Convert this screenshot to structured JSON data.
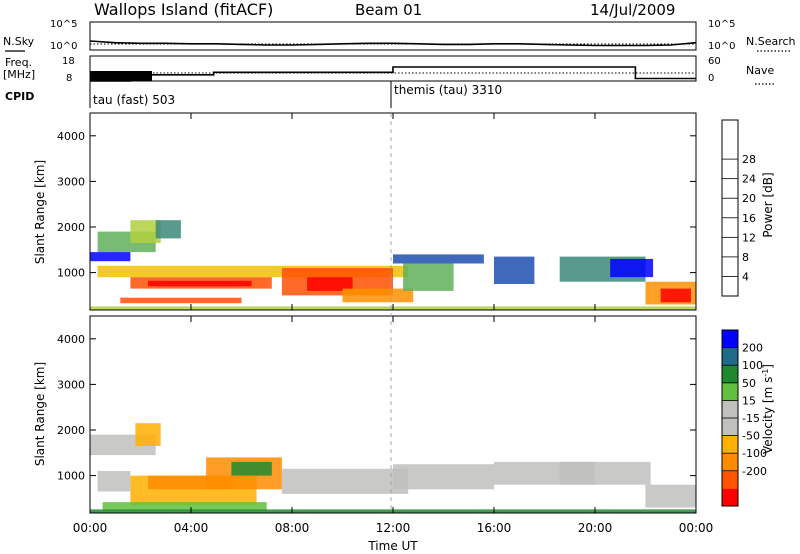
{
  "header": {
    "site": "Wallops Island (fitACF)",
    "beam": "Beam 01",
    "date": "14/Jul/2009"
  },
  "left_labels": {
    "nsky": "N.Sky",
    "freq_top": "Freq.",
    "freq_unit": "[MHz]",
    "cpid": "CPID"
  },
  "right_labels": {
    "nsearch": "N.Search",
    "nave": "Nave"
  },
  "cpid": {
    "segments": [
      {
        "label": "tau (fast) 503",
        "start_hour": 0
      },
      {
        "label": "themis (tau) 3310",
        "start_hour": 12
      }
    ]
  },
  "colors": {
    "power": [
      "#0000ff",
      "#1f4fb0",
      "#3b8a7a",
      "#60b05a",
      "#b0d040",
      "#f0c000",
      "#ff9000",
      "#ff5000",
      "#ff0000"
    ],
    "velocity": [
      "#ff0000",
      "#ff5500",
      "#ff8c00",
      "#ffb000",
      "#c0c0bd",
      "#c0c0bd",
      "#60c040",
      "#1e8a30",
      "#1e6a8a",
      "#0000ff"
    ],
    "lines": "#000000"
  },
  "chart_data": [
    {
      "type": "line",
      "name": "noise",
      "x": [
        0,
        1,
        2,
        3,
        4,
        5,
        6,
        7,
        8,
        9,
        10,
        11,
        12,
        13,
        14,
        15,
        16,
        17,
        18,
        19,
        20,
        21,
        22,
        23,
        24
      ],
      "series": [
        {
          "values": [
            1.6,
            1.3,
            1.2,
            1.2,
            1.1,
            1.1,
            1.0,
            0.9,
            0.9,
            1.0,
            1.1,
            1.2,
            1.2,
            1.1,
            1.0,
            1.0,
            1.1,
            1.1,
            1.0,
            0.9,
            0.8,
            0.8,
            0.8,
            0.9,
            1.3
          ]
        }
      ],
      "yticks_left": [
        "10^5",
        "10^0"
      ],
      "yticks_right": [
        "10^5",
        "10^0"
      ],
      "ylim": [
        0,
        5
      ]
    },
    {
      "type": "line",
      "name": "frequency-nave",
      "x": [
        0,
        1.6,
        1.6,
        4.9,
        4.9,
        12.0,
        12.0,
        21.6,
        21.6,
        24
      ],
      "series": [
        {
          "values": [
            8,
            8,
            10.5,
            10.5,
            11.5,
            11.5,
            13.6,
            13.6,
            9.0,
            9.0
          ]
        }
      ],
      "yticks_left": [
        "18",
        "8"
      ],
      "yticks_right": [
        "60",
        "0"
      ],
      "ylim": [
        8,
        18
      ]
    },
    {
      "type": "heatmap",
      "name": "power",
      "title": "",
      "xlabel": "",
      "ylabel": "Slant Range [km]",
      "xlim": [
        0,
        24
      ],
      "ylim": [
        180,
        4500
      ],
      "yticks": [
        1000,
        2000,
        3000,
        4000
      ],
      "colorbar": {
        "label": "Power [dB]",
        "ticks": [
          "4",
          "8",
          "12",
          "16",
          "20",
          "24",
          "28"
        ]
      },
      "cells": [
        {
          "x": [
            0.3,
            2.6
          ],
          "y": [
            1450,
            1900
          ],
          "level": 3
        },
        {
          "x": [
            1.6,
            2.8
          ],
          "y": [
            1650,
            2150
          ],
          "level": 4
        },
        {
          "x": [
            2.6,
            3.6
          ],
          "y": [
            1750,
            2150
          ],
          "level": 2
        },
        {
          "x": [
            0.0,
            1.6
          ],
          "y": [
            1250,
            1450
          ],
          "level": 0
        },
        {
          "x": [
            0.3,
            12.6
          ],
          "y": [
            900,
            1150
          ],
          "level": 5
        },
        {
          "x": [
            1.6,
            7.2
          ],
          "y": [
            650,
            900
          ],
          "level": 7
        },
        {
          "x": [
            2.3,
            6.4
          ],
          "y": [
            700,
            820
          ],
          "level": 8
        },
        {
          "x": [
            1.2,
            6.0
          ],
          "y": [
            330,
            450
          ],
          "level": 7
        },
        {
          "x": [
            7.6,
            12.0
          ],
          "y": [
            500,
            1100
          ],
          "level": 7
        },
        {
          "x": [
            8.6,
            10.4
          ],
          "y": [
            600,
            900
          ],
          "level": 8
        },
        {
          "x": [
            10.0,
            12.8
          ],
          "y": [
            350,
            650
          ],
          "level": 6
        },
        {
          "x": [
            12.4,
            14.4
          ],
          "y": [
            600,
            1200
          ],
          "level": 3
        },
        {
          "x": [
            12.0,
            15.6
          ],
          "y": [
            1200,
            1400
          ],
          "level": 1
        },
        {
          "x": [
            16.0,
            17.6
          ],
          "y": [
            750,
            1350
          ],
          "level": 1
        },
        {
          "x": [
            18.6,
            22.0
          ],
          "y": [
            800,
            1350
          ],
          "level": 2
        },
        {
          "x": [
            20.6,
            22.3
          ],
          "y": [
            900,
            1300
          ],
          "level": 0
        },
        {
          "x": [
            22.0,
            24.0
          ],
          "y": [
            300,
            800
          ],
          "level": 6
        },
        {
          "x": [
            22.6,
            23.8
          ],
          "y": [
            350,
            650
          ],
          "level": 8
        },
        {
          "x": [
            0.0,
            24.0
          ],
          "y": [
            180,
            260
          ],
          "level": 4
        }
      ]
    },
    {
      "type": "heatmap",
      "name": "velocity",
      "title": "",
      "xlabel": "Time UT",
      "ylabel": "Slant Range [km]",
      "xlim": [
        0,
        24
      ],
      "ylim": [
        180,
        4500
      ],
      "xticks": [
        "00:00",
        "04:00",
        "08:00",
        "12:00",
        "16:00",
        "20:00",
        "00:00"
      ],
      "yticks": [
        1000,
        2000,
        3000,
        4000
      ],
      "colorbar": {
        "label": "Velocity [m s^-1]",
        "ticks": [
          "200",
          "100",
          "50",
          "15",
          "-15",
          "-50",
          "-100",
          "-200"
        ]
      },
      "cells": [
        {
          "x": [
            0.0,
            2.6
          ],
          "y": [
            1450,
            1900
          ],
          "level": 4
        },
        {
          "x": [
            1.8,
            2.8
          ],
          "y": [
            1650,
            2150
          ],
          "level": 3
        },
        {
          "x": [
            0.3,
            1.6
          ],
          "y": [
            650,
            1100
          ],
          "level": 4
        },
        {
          "x": [
            1.6,
            6.6
          ],
          "y": [
            350,
            1000
          ],
          "level": 3
        },
        {
          "x": [
            2.3,
            5.6
          ],
          "y": [
            700,
            1000
          ],
          "level": 2
        },
        {
          "x": [
            4.6,
            7.6
          ],
          "y": [
            700,
            1400
          ],
          "level": 2
        },
        {
          "x": [
            5.6,
            7.2
          ],
          "y": [
            1000,
            1300
          ],
          "level": 7
        },
        {
          "x": [
            7.6,
            12.6
          ],
          "y": [
            600,
            1150
          ],
          "level": 4
        },
        {
          "x": [
            12.0,
            16.0
          ],
          "y": [
            700,
            1250
          ],
          "level": 5
        },
        {
          "x": [
            16.0,
            20.0
          ],
          "y": [
            800,
            1300
          ],
          "level": 4
        },
        {
          "x": [
            18.6,
            22.2
          ],
          "y": [
            800,
            1300
          ],
          "level": 5
        },
        {
          "x": [
            22.0,
            24.0
          ],
          "y": [
            300,
            800
          ],
          "level": 5
        },
        {
          "x": [
            0.5,
            7.0
          ],
          "y": [
            230,
            420
          ],
          "level": 6
        },
        {
          "x": [
            0.0,
            24.0
          ],
          "y": [
            180,
            260
          ],
          "level": 7
        }
      ]
    }
  ]
}
